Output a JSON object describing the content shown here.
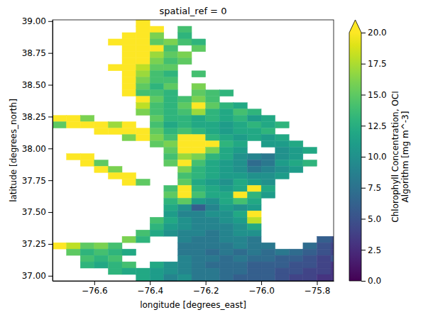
{
  "chart_data": {
    "type": "heatmap",
    "title": "spatial_ref = 0",
    "x_label": "longitude [degrees_east]",
    "y_label": "latitude [degrees_north]",
    "xlim": [
      -76.75,
      -75.74
    ],
    "ylim": [
      36.96,
      39.01
    ],
    "xticks": [
      {
        "value": -76.6,
        "label": "−76.6"
      },
      {
        "value": -76.4,
        "label": "−76.4"
      },
      {
        "value": -76.2,
        "label": "−76.2"
      },
      {
        "value": -76.0,
        "label": "−76.0"
      },
      {
        "value": -75.8,
        "label": "−75.8"
      }
    ],
    "yticks": [
      {
        "value": 37.0,
        "label": "37.00"
      },
      {
        "value": 37.25,
        "label": "37.25"
      },
      {
        "value": 37.5,
        "label": "37.50"
      },
      {
        "value": 37.75,
        "label": "37.75"
      },
      {
        "value": 38.0,
        "label": "38.00"
      },
      {
        "value": 38.25,
        "label": "38.25"
      },
      {
        "value": 38.5,
        "label": "38.50"
      },
      {
        "value": 38.75,
        "label": "38.75"
      },
      {
        "value": 39.0,
        "label": "39.00"
      }
    ],
    "x": [
      -76.725,
      -76.675,
      -76.625,
      -76.575,
      -76.525,
      -76.475,
      -76.425,
      -76.375,
      -76.325,
      -76.275,
      -76.225,
      -76.175,
      -76.125,
      -76.075,
      -76.025,
      -75.975,
      -75.925,
      -75.875,
      -75.825,
      -75.775,
      -75.725
    ],
    "y": [
      38.985,
      38.935,
      38.885,
      38.835,
      38.785,
      38.735,
      38.685,
      38.635,
      38.585,
      38.535,
      38.485,
      38.435,
      38.385,
      38.335,
      38.285,
      38.235,
      38.185,
      38.135,
      38.085,
      38.035,
      37.985,
      37.935,
      37.885,
      37.835,
      37.785,
      37.735,
      37.685,
      37.635,
      37.585,
      37.535,
      37.485,
      37.435,
      37.385,
      37.335,
      37.285,
      37.235,
      37.185,
      37.135,
      37.085,
      37.035,
      36.985
    ],
    "z": [
      [
        null,
        null,
        null,
        null,
        null,
        null,
        22,
        null,
        null,
        null,
        null,
        null,
        null,
        null,
        null,
        null,
        null,
        null,
        null,
        null,
        null
      ],
      [
        null,
        null,
        null,
        null,
        null,
        null,
        22,
        22,
        null,
        14,
        null,
        null,
        null,
        null,
        null,
        null,
        null,
        null,
        null,
        null,
        null
      ],
      [
        null,
        null,
        null,
        null,
        null,
        22,
        22,
        16,
        null,
        13,
        null,
        null,
        null,
        null,
        null,
        null,
        null,
        null,
        null,
        null,
        null
      ],
      [
        null,
        null,
        null,
        null,
        22,
        22,
        22,
        15,
        16,
        14,
        13,
        null,
        null,
        null,
        null,
        null,
        null,
        null,
        null,
        null,
        null
      ],
      [
        null,
        null,
        null,
        null,
        null,
        22,
        22,
        22,
        14,
        null,
        15,
        null,
        null,
        null,
        null,
        null,
        null,
        null,
        null,
        null,
        null
      ],
      [
        null,
        null,
        null,
        null,
        null,
        22,
        22,
        17,
        15,
        16,
        null,
        null,
        null,
        null,
        null,
        null,
        null,
        null,
        null,
        null,
        null
      ],
      [
        null,
        null,
        null,
        null,
        null,
        22,
        20,
        16,
        14,
        15,
        null,
        null,
        null,
        null,
        null,
        null,
        null,
        null,
        null,
        null,
        null
      ],
      [
        null,
        null,
        null,
        null,
        22,
        22,
        18,
        15,
        15,
        null,
        null,
        null,
        null,
        null,
        null,
        null,
        null,
        null,
        null,
        null,
        null
      ],
      [
        null,
        null,
        null,
        null,
        null,
        22,
        17,
        14,
        13,
        null,
        14,
        null,
        null,
        null,
        null,
        null,
        null,
        null,
        null,
        null,
        null
      ],
      [
        null,
        null,
        null,
        null,
        null,
        21,
        16,
        14,
        14,
        null,
        null,
        null,
        null,
        null,
        null,
        null,
        null,
        null,
        null,
        null,
        null
      ],
      [
        null,
        null,
        null,
        null,
        null,
        22,
        15,
        13,
        15,
        null,
        16,
        null,
        null,
        null,
        null,
        null,
        null,
        null,
        null,
        null,
        null
      ],
      [
        null,
        null,
        null,
        null,
        null,
        22,
        14,
        14,
        13,
        null,
        15,
        14,
        13,
        null,
        null,
        null,
        null,
        null,
        null,
        null,
        null
      ],
      [
        null,
        null,
        null,
        null,
        null,
        null,
        22,
        15,
        13,
        14,
        16,
        14,
        null,
        null,
        null,
        null,
        null,
        null,
        null,
        null,
        null
      ],
      [
        null,
        null,
        null,
        null,
        null,
        null,
        18,
        14,
        13,
        15,
        22,
        15,
        13,
        12,
        null,
        null,
        null,
        null,
        null,
        null,
        null
      ],
      [
        null,
        null,
        null,
        null,
        null,
        null,
        16,
        14,
        13,
        14,
        17,
        13,
        12,
        14,
        13,
        null,
        null,
        null,
        null,
        null,
        null
      ],
      [
        22,
        22,
        16,
        null,
        null,
        null,
        null,
        15,
        13,
        13,
        12,
        13,
        12,
        13,
        11,
        12,
        null,
        null,
        null,
        null,
        null
      ],
      [
        15,
        22,
        22,
        22,
        17,
        22,
        null,
        14,
        12,
        13,
        12,
        12,
        11,
        12,
        13,
        12,
        13,
        null,
        null,
        null,
        null
      ],
      [
        null,
        null,
        null,
        20,
        22,
        22,
        22,
        15,
        13,
        14,
        13,
        12,
        11,
        12,
        12,
        13,
        null,
        null,
        null,
        null,
        null
      ],
      [
        null,
        null,
        null,
        null,
        null,
        16,
        22,
        16,
        14,
        22,
        22,
        13,
        12,
        11,
        12,
        11,
        12,
        null,
        null,
        null,
        null
      ],
      [
        null,
        null,
        null,
        null,
        null,
        null,
        null,
        15,
        16,
        22,
        22,
        20,
        13,
        12,
        null,
        11,
        11,
        12,
        null,
        null,
        null
      ],
      [
        null,
        null,
        null,
        null,
        null,
        null,
        null,
        null,
        15,
        22,
        22,
        16,
        12,
        11,
        null,
        null,
        10,
        11,
        12,
        null,
        null
      ],
      [
        null,
        22,
        22,
        null,
        null,
        null,
        null,
        null,
        14,
        17,
        16,
        13,
        12,
        10,
        9,
        8,
        10,
        11,
        null,
        null,
        null
      ],
      [
        null,
        null,
        22,
        15,
        null,
        null,
        null,
        null,
        15,
        22,
        14,
        12,
        11,
        10,
        7,
        8,
        11,
        12,
        13,
        null,
        null
      ],
      [
        null,
        null,
        null,
        22,
        16,
        null,
        null,
        null,
        null,
        16,
        13,
        12,
        11,
        10,
        8,
        9,
        10,
        11,
        null,
        null,
        null
      ],
      [
        null,
        null,
        null,
        null,
        22,
        22,
        null,
        null,
        null,
        14,
        13,
        12,
        11,
        11,
        10,
        10,
        11,
        null,
        null,
        null,
        null
      ],
      [
        null,
        null,
        null,
        null,
        null,
        22,
        15,
        null,
        null,
        15,
        12,
        11,
        10,
        12,
        11,
        10,
        null,
        null,
        null,
        null,
        null
      ],
      [
        null,
        null,
        null,
        null,
        null,
        null,
        null,
        null,
        14,
        22,
        13,
        12,
        11,
        12,
        22,
        12,
        null,
        null,
        null,
        null,
        null
      ],
      [
        null,
        null,
        null,
        null,
        null,
        null,
        null,
        null,
        15,
        22,
        14,
        12,
        12,
        22,
        13,
        11,
        null,
        null,
        null,
        null,
        null
      ],
      [
        null,
        null,
        null,
        null,
        null,
        null,
        null,
        null,
        13,
        15,
        11,
        10,
        12,
        14,
        12,
        null,
        null,
        null,
        null,
        null,
        null
      ],
      [
        null,
        null,
        null,
        null,
        null,
        null,
        null,
        null,
        12,
        10,
        6,
        9,
        11,
        10,
        11,
        null,
        null,
        null,
        null,
        null,
        null
      ],
      [
        null,
        null,
        null,
        null,
        null,
        null,
        null,
        null,
        11,
        9,
        9,
        10,
        10,
        12,
        22,
        null,
        null,
        null,
        null,
        null,
        null
      ],
      [
        null,
        null,
        null,
        null,
        null,
        null,
        null,
        14,
        12,
        10,
        9,
        9,
        10,
        11,
        18,
        null,
        null,
        null,
        null,
        null,
        null
      ],
      [
        null,
        null,
        null,
        null,
        null,
        null,
        null,
        13,
        11,
        10,
        9,
        9,
        9,
        10,
        12,
        null,
        null,
        null,
        null,
        null,
        null
      ],
      [
        null,
        null,
        null,
        null,
        null,
        null,
        14,
        12,
        10,
        9,
        9,
        8,
        9,
        10,
        10,
        null,
        null,
        null,
        null,
        null,
        null
      ],
      [
        null,
        null,
        null,
        null,
        null,
        16,
        13,
        null,
        null,
        9,
        8,
        8,
        9,
        9,
        8,
        null,
        null,
        null,
        null,
        6,
        5
      ],
      [
        22,
        18,
        15,
        16,
        14,
        null,
        null,
        null,
        null,
        8,
        8,
        8,
        8,
        9,
        8,
        8,
        null,
        null,
        7,
        5,
        4
      ],
      [
        null,
        15,
        13,
        14,
        13,
        12,
        null,
        null,
        null,
        8,
        8,
        7,
        8,
        7,
        8,
        7,
        8,
        7,
        6,
        5,
        4
      ],
      [
        null,
        null,
        14,
        13,
        14,
        null,
        null,
        null,
        null,
        9,
        8,
        8,
        7,
        8,
        7,
        7,
        6,
        6,
        5,
        4,
        5
      ],
      [
        null,
        null,
        13,
        12,
        13,
        14,
        null,
        12,
        10,
        9,
        8,
        7,
        7,
        7,
        6,
        6,
        6,
        5,
        5,
        4,
        3
      ],
      [
        null,
        null,
        null,
        null,
        13,
        12,
        12,
        11,
        10,
        9,
        8,
        8,
        7,
        7,
        6,
        6,
        5,
        5,
        4,
        4,
        3
      ],
      [
        null,
        null,
        null,
        null,
        null,
        null,
        12,
        11,
        9,
        10,
        8,
        8,
        7,
        6,
        6,
        6,
        5,
        4,
        4,
        3,
        3
      ]
    ],
    "colorbar": {
      "label": "Chlorophyll Concentration, OCI Algorithm [mg m^-3]",
      "range": [
        0,
        20
      ],
      "ticks": [
        {
          "value": 0,
          "label": "0.0"
        },
        {
          "value": 2.5,
          "label": "2.5"
        },
        {
          "value": 5,
          "label": "5.0"
        },
        {
          "value": 7.5,
          "label": "7.5"
        },
        {
          "value": 10,
          "label": "10.0"
        },
        {
          "value": 12.5,
          "label": "12.5"
        },
        {
          "value": 15,
          "label": "15.0"
        },
        {
          "value": 17.5,
          "label": "17.5"
        },
        {
          "value": 20,
          "label": "20.0"
        }
      ]
    }
  }
}
